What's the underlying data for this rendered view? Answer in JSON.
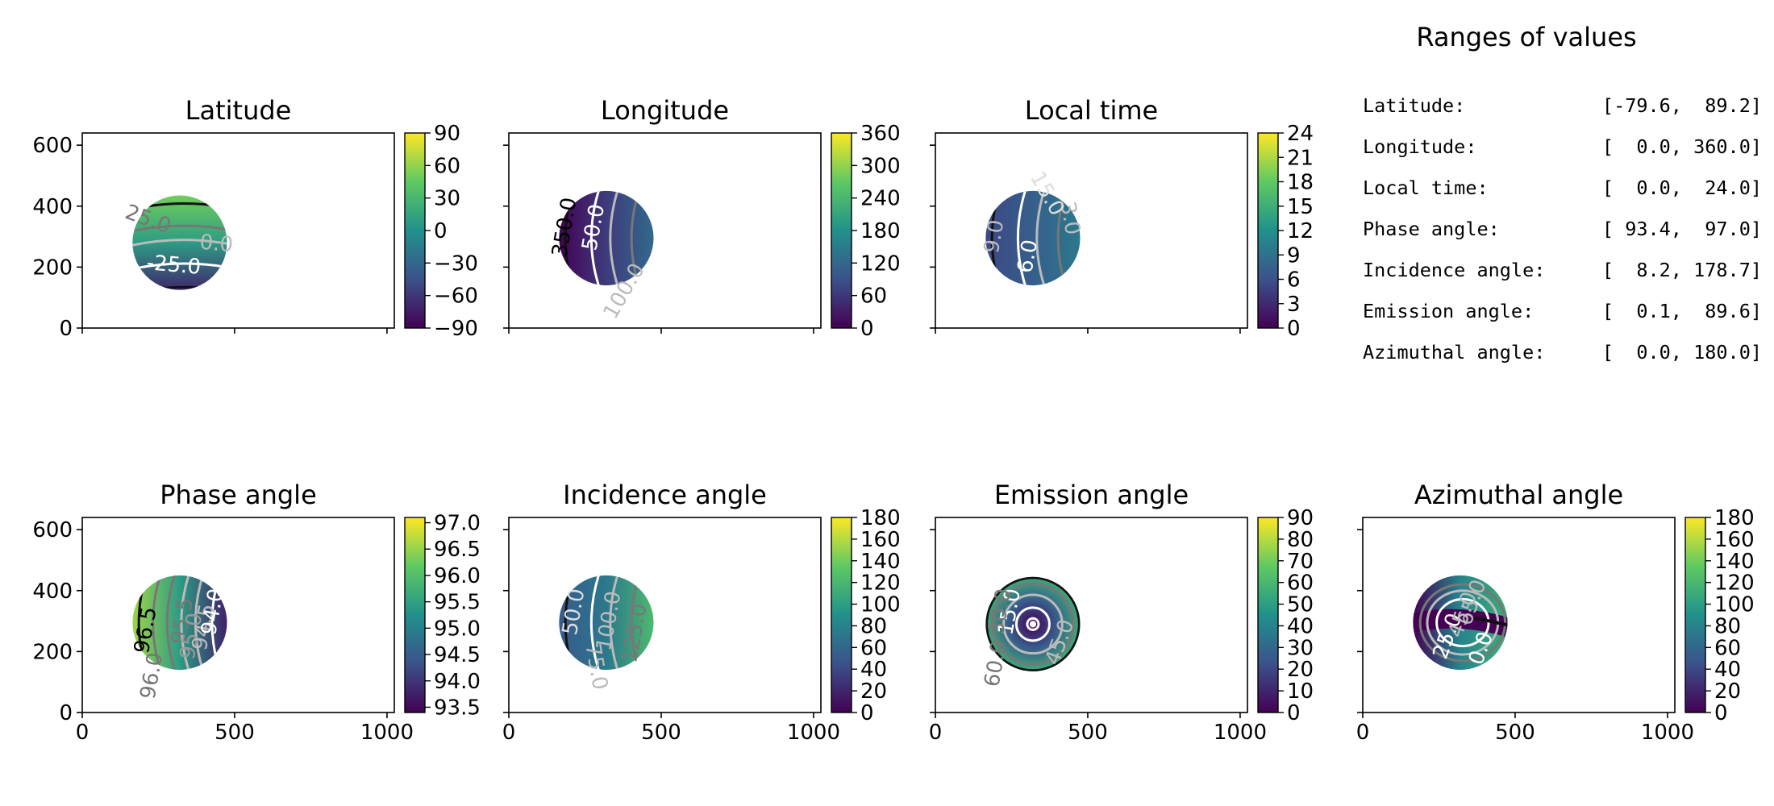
{
  "colors": {
    "viridis": [
      "#440154",
      "#3b528b",
      "#21918c",
      "#5ec962",
      "#fde725"
    ],
    "contour_black": "#111111",
    "contour_gray": "#777777",
    "contour_lightgray": "#bbbbbb",
    "contour_white": "#ffffff"
  },
  "summary": {
    "title": "Ranges of values",
    "rows": [
      {
        "label": "Latitude:",
        "range": "[-79.6,  89.2]"
      },
      {
        "label": "Longitude:",
        "range": "[  0.0, 360.0]"
      },
      {
        "label": "Local time:",
        "range": "[  0.0,  24.0]"
      },
      {
        "label": "Phase angle:",
        "range": "[ 93.4,  97.0]"
      },
      {
        "label": "Incidence angle:",
        "range": "[  8.2, 178.7]"
      },
      {
        "label": "Emission angle:",
        "range": "[  0.1,  89.6]"
      },
      {
        "label": "Azimuthal angle:",
        "range": "[  0.0, 180.0]"
      }
    ]
  },
  "chart_data": [
    {
      "type": "heatmap",
      "title": "Latitude",
      "xlim": [
        0,
        1024
      ],
      "ylim": [
        0,
        640
      ],
      "xticks": [
        "0",
        "500",
        "1000"
      ],
      "xtick_values": [
        0,
        500,
        1000
      ],
      "show_xticklabels": false,
      "yticks": [
        "0",
        "200",
        "400",
        "600"
      ],
      "ytick_values": [
        0,
        200,
        400,
        600
      ],
      "show_yticklabels": true,
      "disk": {
        "cx": 320,
        "cy": 280,
        "r": 155
      },
      "gradient": "vertical",
      "gradient_stops": [
        0.12,
        0.55,
        0.78
      ],
      "colorbar": {
        "range": [
          -90,
          90
        ],
        "ticks": [
          "90",
          "60",
          "30",
          "0",
          "−30",
          "−60",
          "−90"
        ],
        "tick_values": [
          90,
          60,
          30,
          0,
          -30,
          -60,
          -90
        ]
      },
      "contour_labels": [
        {
          "text": "25.0",
          "x": 215,
          "y": 355,
          "rot": 20,
          "color": "#777777"
        },
        {
          "text": "0.0",
          "x": 440,
          "y": 275,
          "rot": 5,
          "color": "#bbbbbb"
        },
        {
          "text": "-25.0",
          "x": 300,
          "y": 205,
          "rot": 5,
          "color": "#ffffff"
        }
      ]
    },
    {
      "type": "heatmap",
      "title": "Longitude",
      "xlim": [
        0,
        1024
      ],
      "ylim": [
        0,
        640
      ],
      "xticks": [
        "0",
        "500",
        "1000"
      ],
      "xtick_values": [
        0,
        500,
        1000
      ],
      "show_xticklabels": false,
      "yticks": [
        "0",
        "200",
        "400",
        "600"
      ],
      "ytick_values": [
        0,
        200,
        400,
        600
      ],
      "show_yticklabels": false,
      "disk": {
        "cx": 320,
        "cy": 295,
        "r": 155
      },
      "gradient": "horizontal",
      "gradient_stops": [
        0.0,
        0.18,
        0.34
      ],
      "colorbar": {
        "range": [
          0,
          360
        ],
        "ticks": [
          "360",
          "300",
          "240",
          "180",
          "120",
          "60",
          "0"
        ],
        "tick_values": [
          360,
          300,
          240,
          180,
          120,
          60,
          0
        ]
      },
      "contour_labels": [
        {
          "text": "350.0",
          "x": 185,
          "y": 330,
          "rot": -80,
          "color": "#000000"
        },
        {
          "text": "50.0",
          "x": 280,
          "y": 330,
          "rot": -80,
          "color": "#ffffff"
        },
        {
          "text": "100.0",
          "x": 380,
          "y": 120,
          "rot": -60,
          "color": "#bbbbbb"
        }
      ]
    },
    {
      "type": "heatmap",
      "title": "Local time",
      "xlim": [
        0,
        1024
      ],
      "ylim": [
        0,
        640
      ],
      "xticks": [
        "0",
        "500",
        "1000"
      ],
      "xtick_values": [
        0,
        500,
        1000
      ],
      "show_xticklabels": false,
      "yticks": [
        "0",
        "200",
        "400",
        "600"
      ],
      "ytick_values": [
        0,
        200,
        400,
        600
      ],
      "show_yticklabels": false,
      "disk": {
        "cx": 320,
        "cy": 295,
        "r": 155
      },
      "gradient": "horizontal",
      "gradient_stops": [
        0.22,
        0.3,
        0.4
      ],
      "colorbar": {
        "range": [
          0,
          24
        ],
        "ticks": [
          "24",
          "21",
          "18",
          "15",
          "12",
          "9",
          "6",
          "3",
          "0"
        ],
        "tick_values": [
          24,
          21,
          18,
          15,
          12,
          9,
          6,
          3,
          0
        ]
      },
      "contour_labels": [
        {
          "text": "9.0",
          "x": 195,
          "y": 300,
          "rot": -80,
          "color": "#bbbbbb"
        },
        {
          "text": "6.0",
          "x": 305,
          "y": 235,
          "rot": -80,
          "color": "#ffffff"
        },
        {
          "text": "3.0",
          "x": 440,
          "y": 360,
          "rot": 80,
          "color": "#bbbbbb"
        },
        {
          "text": "15.0",
          "x": 365,
          "y": 440,
          "rot": 60,
          "color": "#dddddd"
        }
      ]
    },
    {
      "type": "heatmap",
      "title": "Phase angle",
      "xlim": [
        0,
        1024
      ],
      "ylim": [
        0,
        640
      ],
      "xticks": [
        "0",
        "500",
        "1000"
      ],
      "xtick_values": [
        0,
        500,
        1000
      ],
      "show_xticklabels": true,
      "yticks": [
        "0",
        "200",
        "400",
        "600"
      ],
      "ytick_values": [
        0,
        200,
        400,
        600
      ],
      "show_yticklabels": true,
      "disk": {
        "cx": 320,
        "cy": 295,
        "r": 155
      },
      "gradient": "horizontal_rev",
      "gradient_stops": [
        0.85,
        0.55,
        0.1
      ],
      "colorbar": {
        "range": [
          93.4,
          97.1
        ],
        "ticks": [
          "97.0",
          "96.5",
          "96.0",
          "95.5",
          "95.0",
          "94.5",
          "94.0",
          "93.5"
        ],
        "tick_values": [
          97.0,
          96.5,
          96.0,
          95.5,
          95.0,
          94.5,
          94.0,
          93.5
        ]
      },
      "contour_labels": [
        {
          "text": "96.5",
          "x": 210,
          "y": 270,
          "rot": -80,
          "color": "#000000"
        },
        {
          "text": "96.0",
          "x": 230,
          "y": 120,
          "rot": -80,
          "color": "#777777"
        },
        {
          "text": "95.5",
          "x": 330,
          "y": 300,
          "rot": -80,
          "color": "#777777"
        },
        {
          "text": "95.0",
          "x": 360,
          "y": 250,
          "rot": -80,
          "color": "#999999"
        },
        {
          "text": "94.5",
          "x": 400,
          "y": 280,
          "rot": -80,
          "color": "#bbbbbb"
        },
        {
          "text": "94.0",
          "x": 430,
          "y": 330,
          "rot": -80,
          "color": "#ffffff"
        }
      ]
    },
    {
      "type": "heatmap",
      "title": "Incidence angle",
      "xlim": [
        0,
        1024
      ],
      "ylim": [
        0,
        640
      ],
      "xticks": [
        "0",
        "500",
        "1000"
      ],
      "xtick_values": [
        0,
        500,
        1000
      ],
      "show_xticklabels": true,
      "yticks": [
        "0",
        "200",
        "400",
        "600"
      ],
      "ytick_values": [
        0,
        200,
        400,
        600
      ],
      "show_yticklabels": false,
      "disk": {
        "cx": 320,
        "cy": 295,
        "r": 155
      },
      "gradient": "horizontal",
      "gradient_stops": [
        0.28,
        0.4,
        0.68
      ],
      "colorbar": {
        "range": [
          0,
          180
        ],
        "ticks": [
          "180",
          "160",
          "140",
          "120",
          "100",
          "80",
          "60",
          "40",
          "20",
          "0"
        ],
        "tick_values": [
          180,
          160,
          140,
          120,
          100,
          80,
          60,
          40,
          20,
          0
        ]
      },
      "contour_labels": [
        {
          "text": "50.0",
          "x": 215,
          "y": 330,
          "rot": -80,
          "color": "#dddddd"
        },
        {
          "text": "75.0",
          "x": 285,
          "y": 150,
          "rot": 80,
          "color": "#bbbbbb"
        },
        {
          "text": "100.0",
          "x": 330,
          "y": 300,
          "rot": -80,
          "color": "#bbbbbb"
        },
        {
          "text": "125.0",
          "x": 415,
          "y": 260,
          "rot": -80,
          "color": "#777777"
        }
      ]
    },
    {
      "type": "heatmap",
      "title": "Emission angle",
      "xlim": [
        0,
        1024
      ],
      "ylim": [
        0,
        640
      ],
      "xticks": [
        "0",
        "500",
        "1000"
      ],
      "xtick_values": [
        0,
        500,
        1000
      ],
      "show_xticklabels": true,
      "yticks": [
        "0",
        "200",
        "400",
        "600"
      ],
      "ytick_values": [
        0,
        200,
        400,
        600
      ],
      "show_yticklabels": false,
      "disk": {
        "cx": 320,
        "cy": 290,
        "r": 155
      },
      "gradient": "radial",
      "gradient_stops": [
        0.0,
        0.28,
        0.62
      ],
      "colorbar": {
        "range": [
          0,
          90
        ],
        "ticks": [
          "90",
          "80",
          "70",
          "60",
          "50",
          "40",
          "30",
          "20",
          "10",
          "0"
        ],
        "tick_values": [
          90,
          80,
          70,
          60,
          50,
          40,
          30,
          20,
          10,
          0
        ]
      },
      "contour_labels": [
        {
          "text": "15.0",
          "x": 245,
          "y": 330,
          "rot": -80,
          "color": "#ffffff"
        },
        {
          "text": "45.0",
          "x": 410,
          "y": 230,
          "rot": -70,
          "color": "#bbbbbb"
        },
        {
          "text": "60.0",
          "x": 200,
          "y": 160,
          "rot": -80,
          "color": "#777777"
        },
        {
          "text": "30.0",
          "x": 215,
          "y": 330,
          "rot": -80,
          "color": "#777777"
        }
      ]
    },
    {
      "type": "heatmap",
      "title": "Azimuthal angle",
      "xlim": [
        0,
        1024
      ],
      "ylim": [
        0,
        640
      ],
      "xticks": [
        "0",
        "500",
        "1000"
      ],
      "xtick_values": [
        0,
        500,
        1000
      ],
      "show_xticklabels": true,
      "yticks": [
        "0",
        "200",
        "400",
        "600"
      ],
      "ytick_values": [
        0,
        200,
        400,
        600
      ],
      "show_yticklabels": false,
      "disk": {
        "cx": 320,
        "cy": 295,
        "r": 155
      },
      "gradient": "azimuth",
      "gradient_stops": [
        0.0,
        0.45,
        0.62
      ],
      "colorbar": {
        "range": [
          0,
          180
        ],
        "ticks": [
          "180",
          "160",
          "140",
          "120",
          "100",
          "80",
          "60",
          "40",
          "20",
          "0"
        ],
        "tick_values": [
          180,
          160,
          140,
          120,
          100,
          80,
          60,
          40,
          20,
          0
        ]
      },
      "contour_labels": [
        {
          "text": "25.0",
          "x": 280,
          "y": 250,
          "rot": -70,
          "color": "#ffffff"
        },
        {
          "text": "45.0",
          "x": 330,
          "y": 320,
          "rot": -70,
          "color": "#bbbbbb"
        },
        {
          "text": "65.0",
          "x": 360,
          "y": 360,
          "rot": -70,
          "color": "#bbbbbb"
        },
        {
          "text": "0.0",
          "x": 390,
          "y": 210,
          "rot": -70,
          "color": "#ffffff"
        }
      ]
    }
  ]
}
